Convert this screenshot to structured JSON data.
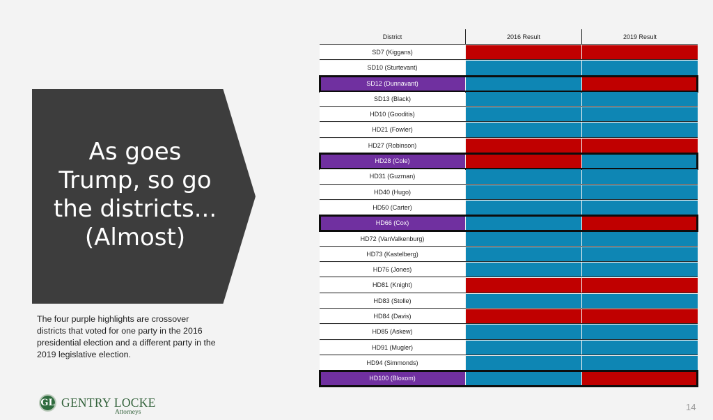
{
  "slide": {
    "title_lines": [
      "As goes",
      "Trump, so go",
      "the districts...",
      "(Almost)"
    ],
    "caption": "The four purple highlights are crossover districts that voted for one party in the 2016 presidential election and a different party in the 2019 legislative election.",
    "logo_name": "GENTRY LOCKE",
    "logo_subtitle": "Attorneys",
    "page_number": "14"
  },
  "colors": {
    "republican": "#c00000",
    "democrat": "#0e86b4",
    "crossover_highlight": "#7030a0",
    "title_block": "#3d3d3d"
  },
  "table": {
    "headers": [
      "District",
      "2016 Result",
      "2019 Result"
    ],
    "rows": [
      {
        "district": "SD7 (Kiggans)",
        "r2016": "R",
        "r2019": "R",
        "crossover": false
      },
      {
        "district": "SD10 (Sturtevant)",
        "r2016": "D",
        "r2019": "D",
        "crossover": false
      },
      {
        "district": "SD12 (Dunnavant)",
        "r2016": "D",
        "r2019": "R",
        "crossover": true
      },
      {
        "district": "SD13 (Black)",
        "r2016": "D",
        "r2019": "D",
        "crossover": false
      },
      {
        "district": "HD10 (Gooditis)",
        "r2016": "D",
        "r2019": "D",
        "crossover": false
      },
      {
        "district": "HD21 (Fowler)",
        "r2016": "D",
        "r2019": "D",
        "crossover": false
      },
      {
        "district": "HD27 (Robinson)",
        "r2016": "R",
        "r2019": "R",
        "crossover": false
      },
      {
        "district": "HD28 (Cole)",
        "r2016": "R",
        "r2019": "D",
        "crossover": true
      },
      {
        "district": "HD31 (Guzman)",
        "r2016": "D",
        "r2019": "D",
        "crossover": false
      },
      {
        "district": "HD40 (Hugo)",
        "r2016": "D",
        "r2019": "D",
        "crossover": false
      },
      {
        "district": "HD50 (Carter)",
        "r2016": "D",
        "r2019": "D",
        "crossover": false
      },
      {
        "district": "HD66 (Cox)",
        "r2016": "D",
        "r2019": "R",
        "crossover": true
      },
      {
        "district": "HD72 (VanValkenburg)",
        "r2016": "D",
        "r2019": "D",
        "crossover": false
      },
      {
        "district": "HD73 (Kastelberg)",
        "r2016": "D",
        "r2019": "D",
        "crossover": false
      },
      {
        "district": "HD76 (Jones)",
        "r2016": "D",
        "r2019": "D",
        "crossover": false
      },
      {
        "district": "HD81 (Knight)",
        "r2016": "R",
        "r2019": "R",
        "crossover": false
      },
      {
        "district": "HD83 (Stolle)",
        "r2016": "D",
        "r2019": "D",
        "crossover": false
      },
      {
        "district": "HD84 (Davis)",
        "r2016": "R",
        "r2019": "R",
        "crossover": false
      },
      {
        "district": "HD85 (Askew)",
        "r2016": "D",
        "r2019": "D",
        "crossover": false
      },
      {
        "district": "HD91 (Mugler)",
        "r2016": "D",
        "r2019": "D",
        "crossover": false
      },
      {
        "district": "HD94 (Simmonds)",
        "r2016": "D",
        "r2019": "D",
        "crossover": false
      },
      {
        "district": "HD100 (Bloxom)",
        "r2016": "D",
        "r2019": "R",
        "crossover": true
      }
    ]
  }
}
